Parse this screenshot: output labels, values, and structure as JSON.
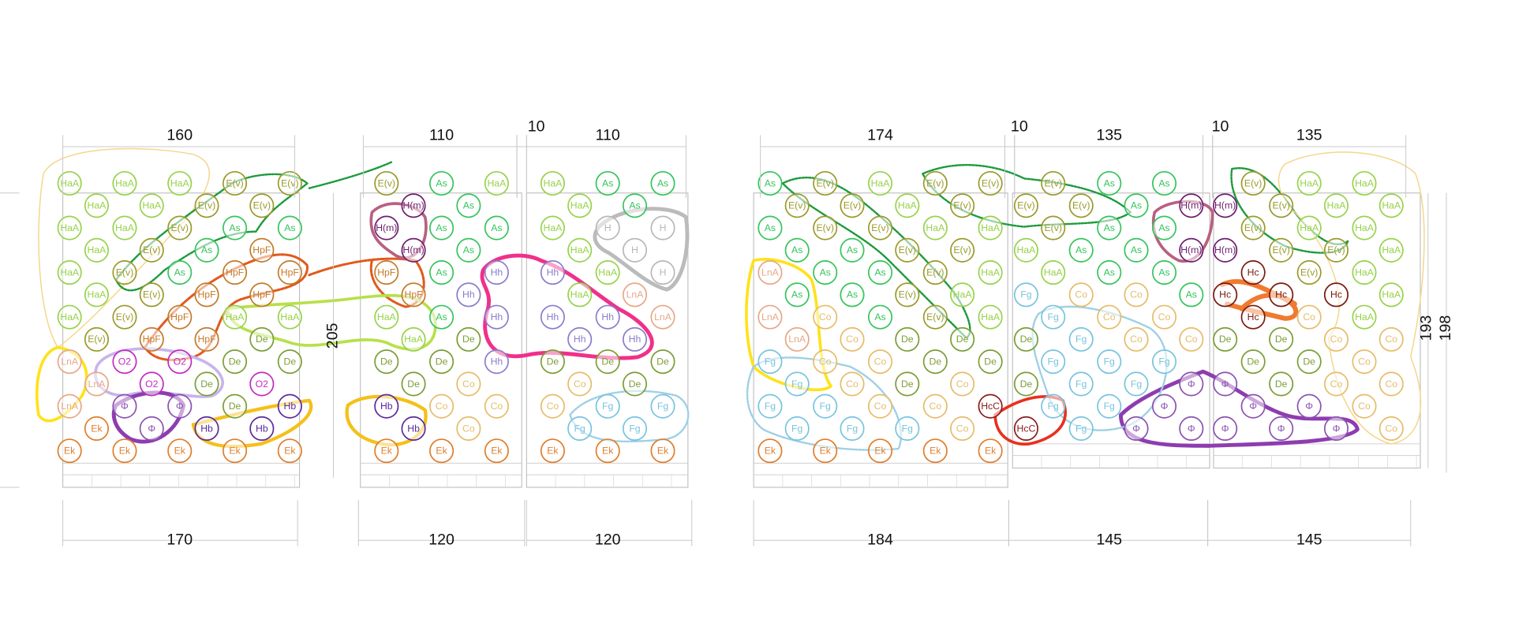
{
  "dimensions": {
    "top": [
      160,
      110,
      10,
      110,
      174,
      10,
      135,
      10,
      135
    ],
    "bottom": [
      170,
      120,
      120,
      184,
      145,
      145
    ],
    "height": [
      205,
      193,
      198
    ]
  },
  "panels": [
    {
      "rows": [
        [
          "HaA",
          "HaA",
          "HaA",
          "E(v)",
          "E(v)"
        ],
        [
          "HaA",
          "HaA",
          "E(v)",
          "E(v)"
        ],
        [
          "HaA",
          "HaA",
          "E(v)",
          "As",
          "As"
        ],
        [
          "HaA",
          "E(v)",
          "As",
          "HpF"
        ],
        [
          "HaA",
          "E(v)",
          "As",
          "HpF",
          "HpF"
        ],
        [
          "HaA",
          "E(v)",
          "HpF",
          "HpF"
        ],
        [
          "HaA",
          "E(v)",
          "HpF",
          "HaA",
          "HaA"
        ],
        [
          "E(v)",
          "HpF",
          "HpF",
          "De"
        ],
        [
          "LnA",
          "O2",
          "O2",
          "De",
          "De"
        ],
        [
          "LnA",
          "O2",
          "De",
          "O2"
        ],
        [
          "LnA",
          "Φ",
          "Φ",
          "De",
          "Hb"
        ],
        [
          "Ek",
          "Φ",
          "Hb",
          "Hb"
        ],
        [
          "Ek",
          "Ek",
          "Ek",
          "Ek",
          "Ek"
        ]
      ]
    },
    {
      "rows": [
        [
          "E(v)",
          "As",
          "HaA"
        ],
        [
          "H(m)",
          "As"
        ],
        [
          "H(m)",
          "As",
          "As"
        ],
        [
          "H(m)",
          "As"
        ],
        [
          "HpF",
          "As",
          "Hh"
        ],
        [
          "HpF",
          "Hh"
        ],
        [
          "HaA",
          "As",
          "Hh"
        ],
        [
          "HaA",
          "De"
        ],
        [
          "De",
          "De",
          "Hh"
        ],
        [
          "De",
          "Co"
        ],
        [
          "Hb",
          "Co",
          "Co"
        ],
        [
          "Hb",
          "Co"
        ],
        [
          "Ek",
          "Ek",
          "Ek"
        ]
      ]
    },
    {
      "rows": [
        [
          "HaA",
          "As",
          "As"
        ],
        [
          "HaA",
          "As"
        ],
        [
          "HaA",
          "H",
          "H"
        ],
        [
          "HaA",
          "H"
        ],
        [
          "Hh",
          "HaA",
          "H"
        ],
        [
          "HaA",
          "LnA"
        ],
        [
          "Hh",
          "Hh",
          "LnA"
        ],
        [
          "Hh",
          "Hh"
        ],
        [
          "De",
          "De",
          "De"
        ],
        [
          "Co",
          "De"
        ],
        [
          "Co",
          "Fg",
          "Fg"
        ],
        [
          "Fg",
          "Fg"
        ],
        [
          "Ek",
          "Ek",
          "Ek"
        ]
      ]
    },
    {
      "rows": [
        [
          "As",
          "E(v)",
          "HaA",
          "E(v)",
          "E(v)"
        ],
        [
          "E(v)",
          "E(v)",
          "HaA",
          "E(v)"
        ],
        [
          "As",
          "E(v)",
          "E(v)",
          "HaA",
          "HaA"
        ],
        [
          "As",
          "As",
          "E(v)",
          "E(v)"
        ],
        [
          "LnA",
          "As",
          "As",
          "E(v)",
          "HaA"
        ],
        [
          "As",
          "As",
          "E(v)",
          "HaA"
        ],
        [
          "LnA",
          "Co",
          "As",
          "E(v)",
          "HaA"
        ],
        [
          "LnA",
          "Co",
          "De",
          "De"
        ],
        [
          "Fg",
          "Co",
          "Co",
          "De",
          "De"
        ],
        [
          "Fg",
          "Co",
          "De",
          "Co"
        ],
        [
          "Fg",
          "Fg",
          "Co",
          "Co",
          "HcC"
        ],
        [
          "Fg",
          "Fg",
          "Fg",
          "Co"
        ],
        [
          "Ek",
          "Ek",
          "Ek",
          "Ek",
          "Ek"
        ]
      ]
    },
    {
      "rows": [
        [
          "E(v)",
          "As",
          "As"
        ],
        [
          "E(v)",
          "E(v)",
          "As",
          "H(m)"
        ],
        [
          "E(v)",
          "As",
          "As"
        ],
        [
          "HaA",
          "As",
          "As",
          "H(m)"
        ],
        [
          "HaA",
          "As",
          "As"
        ],
        [
          "Fg",
          "Co",
          "Co",
          "As"
        ],
        [
          "Fg",
          "Co",
          "Co"
        ],
        [
          "De",
          "Fg",
          "Co",
          "Co"
        ],
        [
          "Fg",
          "Fg",
          "Fg"
        ],
        [
          "De",
          "Fg",
          "Fg",
          "Φ"
        ],
        [
          "Fg",
          "Fg",
          "Φ"
        ],
        [
          "HcC",
          "Fg",
          "Φ",
          "Φ"
        ]
      ]
    },
    {
      "rows": [
        [
          "E(v)",
          "HaA",
          "HaA"
        ],
        [
          "H(m)",
          "E(v)",
          "HaA",
          "HaA"
        ],
        [
          "E(v)",
          "HaA",
          "HaA"
        ],
        [
          "H(m)",
          "E(v)",
          "E(v)",
          "HaA"
        ],
        [
          "Hc",
          "E(v)",
          "HaA"
        ],
        [
          "Hc",
          "Hc",
          "Hc",
          "HaA"
        ],
        [
          "Hc",
          "Co",
          "HaA"
        ],
        [
          "De",
          "De",
          "Co",
          "Co"
        ],
        [
          "De",
          "De",
          "Co"
        ],
        [
          "Φ",
          "De",
          "Co",
          "Co"
        ],
        [
          "Φ",
          "Φ",
          "Co"
        ],
        [
          "Φ",
          "Φ",
          "Φ",
          "Co"
        ]
      ]
    }
  ]
}
